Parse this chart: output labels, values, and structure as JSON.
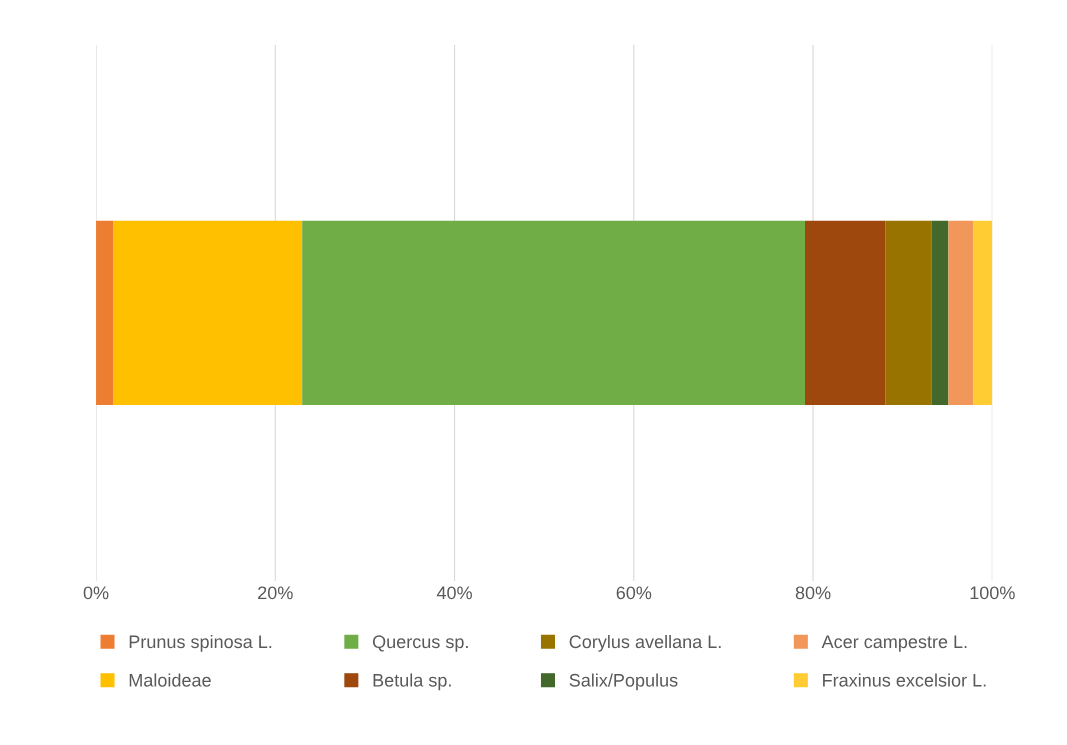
{
  "chart_data": {
    "type": "bar",
    "orientation": "horizontal",
    "stacked": true,
    "categories": [
      null
    ],
    "series": [
      {
        "name": "Prunus spinosa L.",
        "color": "#ed7d31",
        "values": [
          1.9
        ]
      },
      {
        "name": "Maloideae",
        "color": "#ffc000",
        "values": [
          21.1
        ]
      },
      {
        "name": "Quercus sp.",
        "color": "#70ad47",
        "values": [
          56.1
        ]
      },
      {
        "name": "Betula sp.",
        "color": "#9e480e",
        "values": [
          9.0
        ]
      },
      {
        "name": "Corylus avellana L.",
        "color": "#997300",
        "values": [
          5.1
        ]
      },
      {
        "name": "Salix/Populus",
        "color": "#43682b",
        "values": [
          1.9
        ]
      },
      {
        "name": "Acer campestre L.",
        "color": "#f1975a",
        "values": [
          2.8
        ]
      },
      {
        "name": "Fraxinus excelsior L.",
        "color": "#ffcd33",
        "values": [
          2.1
        ]
      }
    ],
    "xlim": [
      0,
      100
    ],
    "xticks": [
      {
        "value": 0,
        "label": "0%"
      },
      {
        "value": 20,
        "label": "20%"
      },
      {
        "value": 40,
        "label": "40%"
      },
      {
        "value": 60,
        "label": "60%"
      },
      {
        "value": 80,
        "label": "80%"
      },
      {
        "value": 100,
        "label": "100%"
      }
    ],
    "grid": "x",
    "legend": "bottom",
    "tick_labels": "x"
  }
}
